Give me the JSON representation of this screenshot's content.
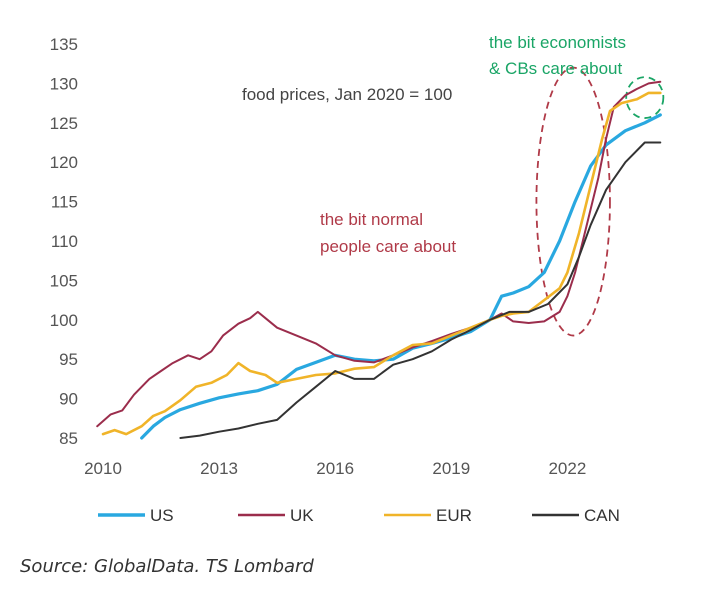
{
  "chart_data": {
    "type": "line",
    "title": "",
    "subtitle": "food prices, Jan 2020 = 100",
    "xlabel": "",
    "ylabel": "",
    "xlim": [
      2010,
      2024.6
    ],
    "ylim": [
      85,
      135
    ],
    "x_ticks": [
      2010,
      2013,
      2016,
      2019,
      2022
    ],
    "y_ticks": [
      85,
      90,
      95,
      100,
      105,
      110,
      115,
      120,
      125,
      130,
      135
    ],
    "grid": false,
    "legend_position": "bottom",
    "series": [
      {
        "name": "US",
        "color": "#29a8e0",
        "points": [
          [
            2011.0,
            85.0
          ],
          [
            2011.3,
            86.5
          ],
          [
            2011.6,
            87.6
          ],
          [
            2012.0,
            88.6
          ],
          [
            2012.5,
            89.4
          ],
          [
            2013.0,
            90.1
          ],
          [
            2013.5,
            90.6
          ],
          [
            2014.0,
            91.0
          ],
          [
            2014.5,
            91.8
          ],
          [
            2015.0,
            93.7
          ],
          [
            2015.5,
            94.6
          ],
          [
            2016.0,
            95.5
          ],
          [
            2016.5,
            95.0
          ],
          [
            2017.0,
            94.8
          ],
          [
            2017.5,
            95.0
          ],
          [
            2018.0,
            96.4
          ],
          [
            2018.5,
            97.0
          ],
          [
            2019.0,
            97.7
          ],
          [
            2019.5,
            98.5
          ],
          [
            2020.0,
            100.0
          ],
          [
            2020.3,
            103.0
          ],
          [
            2020.6,
            103.4
          ],
          [
            2021.0,
            104.2
          ],
          [
            2021.4,
            106.0
          ],
          [
            2021.8,
            110.0
          ],
          [
            2022.2,
            115.0
          ],
          [
            2022.6,
            119.5
          ],
          [
            2023.0,
            122.2
          ],
          [
            2023.5,
            124.0
          ],
          [
            2024.0,
            125.0
          ],
          [
            2024.4,
            126.0
          ]
        ]
      },
      {
        "name": "UK",
        "color": "#9b2d4c",
        "points": [
          [
            2009.85,
            86.5
          ],
          [
            2010.2,
            88.0
          ],
          [
            2010.5,
            88.5
          ],
          [
            2010.8,
            90.5
          ],
          [
            2011.2,
            92.5
          ],
          [
            2011.5,
            93.5
          ],
          [
            2011.8,
            94.5
          ],
          [
            2012.2,
            95.5
          ],
          [
            2012.5,
            95.0
          ],
          [
            2012.8,
            96.0
          ],
          [
            2013.1,
            98.0
          ],
          [
            2013.5,
            99.5
          ],
          [
            2013.8,
            100.2
          ],
          [
            2014.0,
            101.0
          ],
          [
            2014.2,
            100.2
          ],
          [
            2014.5,
            99.0
          ],
          [
            2015.0,
            98.0
          ],
          [
            2015.5,
            97.0
          ],
          [
            2016.0,
            95.5
          ],
          [
            2016.5,
            94.8
          ],
          [
            2017.0,
            94.6
          ],
          [
            2017.5,
            95.5
          ],
          [
            2018.0,
            96.5
          ],
          [
            2018.5,
            97.3
          ],
          [
            2019.0,
            98.2
          ],
          [
            2019.5,
            99.0
          ],
          [
            2020.0,
            100.0
          ],
          [
            2020.3,
            100.8
          ],
          [
            2020.6,
            99.8
          ],
          [
            2021.0,
            99.6
          ],
          [
            2021.4,
            99.8
          ],
          [
            2021.8,
            101.0
          ],
          [
            2022.0,
            103.0
          ],
          [
            2022.2,
            106.0
          ],
          [
            2022.5,
            112.0
          ],
          [
            2022.8,
            118.0
          ],
          [
            2023.0,
            123.0
          ],
          [
            2023.2,
            127.0
          ],
          [
            2023.5,
            128.5
          ],
          [
            2023.8,
            129.3
          ],
          [
            2024.1,
            130.0
          ],
          [
            2024.4,
            130.2
          ]
        ]
      },
      {
        "name": "EUR",
        "color": "#f0b429",
        "points": [
          [
            2010.0,
            85.5
          ],
          [
            2010.3,
            86.0
          ],
          [
            2010.6,
            85.5
          ],
          [
            2011.0,
            86.5
          ],
          [
            2011.3,
            87.8
          ],
          [
            2011.6,
            88.4
          ],
          [
            2012.0,
            89.8
          ],
          [
            2012.4,
            91.5
          ],
          [
            2012.8,
            92.0
          ],
          [
            2013.2,
            93.0
          ],
          [
            2013.5,
            94.5
          ],
          [
            2013.8,
            93.5
          ],
          [
            2014.2,
            93.0
          ],
          [
            2014.5,
            92.0
          ],
          [
            2015.0,
            92.5
          ],
          [
            2015.5,
            93.0
          ],
          [
            2016.0,
            93.2
          ],
          [
            2016.5,
            93.8
          ],
          [
            2017.0,
            94.0
          ],
          [
            2017.5,
            95.5
          ],
          [
            2018.0,
            96.8
          ],
          [
            2018.5,
            97.0
          ],
          [
            2019.0,
            98.0
          ],
          [
            2019.5,
            99.0
          ],
          [
            2020.0,
            100.0
          ],
          [
            2020.3,
            100.5
          ],
          [
            2020.6,
            100.8
          ],
          [
            2021.0,
            101.0
          ],
          [
            2021.4,
            102.5
          ],
          [
            2021.8,
            104.0
          ],
          [
            2022.0,
            106.0
          ],
          [
            2022.3,
            111.0
          ],
          [
            2022.6,
            117.0
          ],
          [
            2022.9,
            123.0
          ],
          [
            2023.1,
            126.5
          ],
          [
            2023.4,
            127.5
          ],
          [
            2023.8,
            128.0
          ],
          [
            2024.1,
            128.8
          ],
          [
            2024.4,
            128.8
          ]
        ]
      },
      {
        "name": "CAN",
        "color": "#333333",
        "points": [
          [
            2012.0,
            85.0
          ],
          [
            2012.5,
            85.3
          ],
          [
            2013.0,
            85.8
          ],
          [
            2013.5,
            86.2
          ],
          [
            2014.0,
            86.8
          ],
          [
            2014.5,
            87.3
          ],
          [
            2015.0,
            89.5
          ],
          [
            2015.5,
            91.5
          ],
          [
            2016.0,
            93.5
          ],
          [
            2016.5,
            92.5
          ],
          [
            2017.0,
            92.5
          ],
          [
            2017.5,
            94.3
          ],
          [
            2018.0,
            95.0
          ],
          [
            2018.5,
            96.0
          ],
          [
            2019.0,
            97.5
          ],
          [
            2019.5,
            98.7
          ],
          [
            2020.0,
            100.0
          ],
          [
            2020.5,
            101.0
          ],
          [
            2021.0,
            101.0
          ],
          [
            2021.5,
            102.0
          ],
          [
            2022.0,
            104.5
          ],
          [
            2022.3,
            108.0
          ],
          [
            2022.6,
            112.0
          ],
          [
            2023.0,
            116.5
          ],
          [
            2023.5,
            120.0
          ],
          [
            2024.0,
            122.5
          ],
          [
            2024.4,
            122.5
          ]
        ]
      }
    ],
    "annotations": [
      {
        "text": "food prices, Jan 2020 = 100",
        "color": "#444444"
      },
      {
        "text": "the bit normal",
        "color": "#b03a48"
      },
      {
        "text": "people care about",
        "color": "#b03a48"
      },
      {
        "text": "the bit economists",
        "color": "#1aa566"
      },
      {
        "text": "& CBs care about",
        "color": "#1aa566"
      }
    ],
    "highlight_ellipses": [
      {
        "label": "the bit normal people care about",
        "color": "#b03a48",
        "x_center": 2022.15,
        "y_center": 115.0,
        "x_radius": 0.95,
        "y_radius": 17.0
      },
      {
        "label": "the bit economists & CBs care about",
        "color": "#1aa566",
        "x_center": 2024.0,
        "y_center": 128.2,
        "x_radius": 0.48,
        "y_radius": 2.6
      }
    ]
  },
  "source_text": "Source: GlobalData. TS Lombard"
}
